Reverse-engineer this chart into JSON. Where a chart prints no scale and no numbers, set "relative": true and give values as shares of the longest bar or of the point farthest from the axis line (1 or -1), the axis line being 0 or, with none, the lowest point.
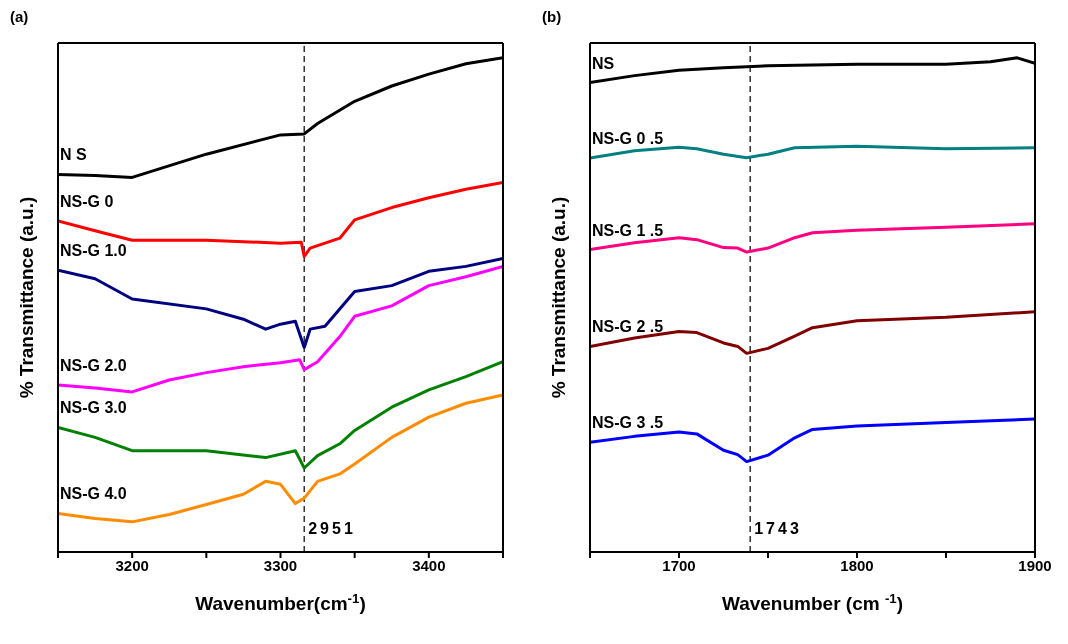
{
  "chart_data": [
    {
      "type": "line",
      "title": "(a)",
      "xlabel": "Wavenumber(cm$^{-1}$)",
      "ylabel": "% Transmittance (a.u.)",
      "relative": true,
      "xlim": [
        3150,
        3450
      ],
      "xticks": [
        {
          "value": 3150,
          "label": null
        },
        3200,
        {
          "value": 3250,
          "label": null
        },
        3300,
        {
          "value": 3350,
          "label": null
        },
        3400,
        {
          "value": 3450,
          "label": null
        }
      ],
      "ref_lines": [
        {
          "axis": "x",
          "value": 3316,
          "line_style": "dashed",
          "color": "#333333"
        }
      ],
      "annotations": [
        "2951"
      ],
      "series": [
        {
          "name": "N S",
          "color": "#000000",
          "x": [
            3150,
            3175,
            3200,
            3250,
            3300,
            3316,
            3325,
            3350,
            3375,
            3400,
            3425,
            3450
          ],
          "values": [
            0.764,
            0.762,
            0.758,
            0.805,
            0.844,
            0.846,
            0.867,
            0.912,
            0.943,
            0.967,
            0.988,
            1.0
          ]
        },
        {
          "name": "NS-G 0",
          "color": "#ff0000",
          "x": [
            3150,
            3175,
            3200,
            3250,
            3300,
            3314,
            3316,
            3320,
            3340,
            3350,
            3375,
            3400,
            3425,
            3450
          ],
          "values": [
            0.67,
            0.65,
            0.631,
            0.631,
            0.625,
            0.627,
            0.598,
            0.615,
            0.635,
            0.672,
            0.697,
            0.717,
            0.734,
            0.748
          ]
        },
        {
          "name": "NS-G 1.0",
          "color": "#000080",
          "x": [
            3150,
            3175,
            3200,
            3250,
            3275,
            3290,
            3300,
            3310,
            3316,
            3320,
            3330,
            3350,
            3375,
            3400,
            3425,
            3450
          ],
          "values": [
            0.57,
            0.553,
            0.512,
            0.492,
            0.471,
            0.451,
            0.461,
            0.467,
            0.414,
            0.451,
            0.457,
            0.527,
            0.539,
            0.568,
            0.578,
            0.594
          ]
        },
        {
          "name": "NS-G 2.0",
          "color": "#ff00ff",
          "x": [
            3150,
            3175,
            3200,
            3225,
            3250,
            3275,
            3300,
            3313,
            3316,
            3325,
            3340,
            3350,
            3375,
            3400,
            3425,
            3450
          ],
          "values": [
            0.338,
            0.332,
            0.324,
            0.348,
            0.363,
            0.375,
            0.383,
            0.389,
            0.369,
            0.385,
            0.436,
            0.477,
            0.498,
            0.539,
            0.557,
            0.578
          ]
        },
        {
          "name": "NS-G 3.0",
          "color": "#008000",
          "x": [
            3150,
            3175,
            3200,
            3250,
            3290,
            3310,
            3316,
            3325,
            3340,
            3350,
            3375,
            3400,
            3425,
            3450
          ],
          "values": [
            0.252,
            0.232,
            0.205,
            0.205,
            0.191,
            0.205,
            0.17,
            0.195,
            0.219,
            0.246,
            0.293,
            0.328,
            0.355,
            0.385
          ]
        },
        {
          "name": "NS-G 4.0",
          "color": "#ff8c00",
          "x": [
            3150,
            3175,
            3200,
            3225,
            3250,
            3275,
            3290,
            3300,
            3310,
            3316,
            3325,
            3340,
            3350,
            3375,
            3400,
            3425,
            3450
          ],
          "values": [
            0.078,
            0.068,
            0.061,
            0.076,
            0.096,
            0.117,
            0.143,
            0.137,
            0.098,
            0.109,
            0.143,
            0.158,
            0.178,
            0.232,
            0.273,
            0.301,
            0.318
          ]
        }
      ]
    },
    {
      "type": "line",
      "title": "(b)",
      "xlabel": "Wavenumber (cm $^{-1}$)",
      "ylabel": "% Transmittance (a.u.)",
      "relative": true,
      "xlim": [
        1650,
        1900
      ],
      "xticks": [
        {
          "value": 1650,
          "label": null
        },
        1700,
        {
          "value": 1750,
          "label": null
        },
        1800,
        {
          "value": 1850,
          "label": null
        },
        1900
      ],
      "ref_lines": [
        {
          "axis": "x",
          "value": 1740,
          "line_style": "dashed",
          "color": "#333333"
        }
      ],
      "annotations": [
        "1743"
      ],
      "series": [
        {
          "name": "NS",
          "color": "#000000",
          "x": [
            1650,
            1675,
            1700,
            1725,
            1750,
            1800,
            1850,
            1875,
            1890,
            1900
          ],
          "values": [
            0.95,
            0.964,
            0.975,
            0.98,
            0.984,
            0.987,
            0.987,
            0.992,
            1.0,
            0.989
          ]
        },
        {
          "name": "NS-G 0 .5",
          "color": "#008080",
          "x": [
            1650,
            1675,
            1700,
            1710,
            1725,
            1738,
            1750,
            1765,
            1800,
            1850,
            1900
          ],
          "values": [
            0.797,
            0.812,
            0.819,
            0.816,
            0.805,
            0.798,
            0.805,
            0.818,
            0.821,
            0.816,
            0.818
          ]
        },
        {
          "name": "NS-G 1 .5",
          "color": "#ff0080",
          "x": [
            1650,
            1675,
            1700,
            1710,
            1725,
            1733,
            1738,
            1750,
            1765,
            1775,
            1800,
            1850,
            1900
          ],
          "values": [
            0.612,
            0.626,
            0.636,
            0.632,
            0.616,
            0.615,
            0.607,
            0.615,
            0.636,
            0.646,
            0.651,
            0.657,
            0.664
          ]
        },
        {
          "name": "NS-G 2 .5",
          "color": "#800000",
          "x": [
            1650,
            1675,
            1700,
            1710,
            1725,
            1733,
            1738,
            1750,
            1765,
            1775,
            1800,
            1850,
            1900
          ],
          "values": [
            0.416,
            0.433,
            0.446,
            0.444,
            0.423,
            0.416,
            0.402,
            0.412,
            0.437,
            0.454,
            0.468,
            0.475,
            0.486
          ]
        },
        {
          "name": "NS-G 3 .5",
          "color": "#0000ff",
          "x": [
            1650,
            1675,
            1700,
            1710,
            1725,
            1733,
            1738,
            1750,
            1765,
            1775,
            1800,
            1850,
            1900
          ],
          "values": [
            0.222,
            0.234,
            0.243,
            0.239,
            0.206,
            0.197,
            0.183,
            0.196,
            0.231,
            0.248,
            0.255,
            0.262,
            0.269
          ]
        }
      ]
    }
  ]
}
